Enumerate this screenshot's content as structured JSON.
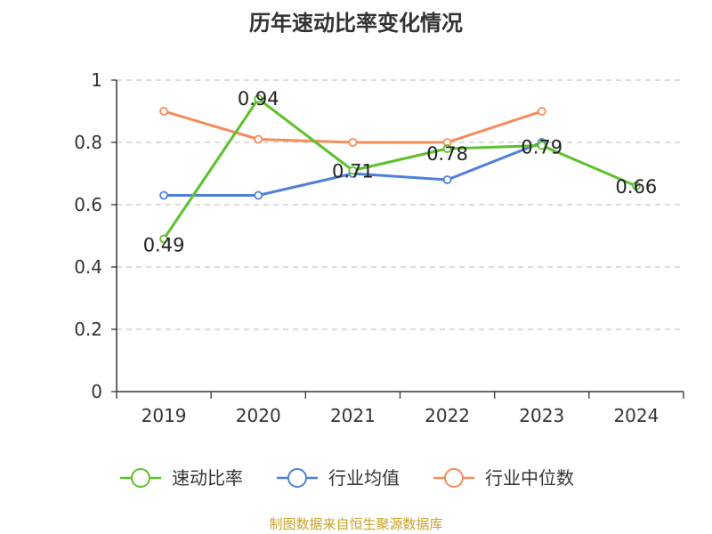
{
  "title": "历年速动比率变化情况",
  "source": "制图数据来自恒生聚源数据库",
  "chart_data": {
    "type": "line",
    "title": "历年速动比率变化情况",
    "x": [
      "2019",
      "2020",
      "2021",
      "2022",
      "2023",
      "2024"
    ],
    "ylim": [
      0,
      1
    ],
    "yticks": [
      "0",
      "0.2",
      "0.4",
      "0.6",
      "0.8",
      "1"
    ],
    "grid": true,
    "legend_position": "bottom",
    "series": [
      {
        "name": "速动比率",
        "color": "#5cc12b",
        "values": [
          0.49,
          0.94,
          0.71,
          0.78,
          0.79,
          0.66
        ],
        "labels": [
          "0.49",
          "0.94",
          "0.71",
          "0.78",
          "0.79",
          "0.66"
        ]
      },
      {
        "name": "行业均值",
        "color": "#4f7fd9",
        "values": [
          0.63,
          0.63,
          0.7,
          0.68,
          0.8,
          null
        ]
      },
      {
        "name": "行业中位数",
        "color": "#f58b5a",
        "values": [
          0.9,
          0.81,
          0.8,
          0.8,
          0.9,
          null
        ]
      }
    ]
  }
}
